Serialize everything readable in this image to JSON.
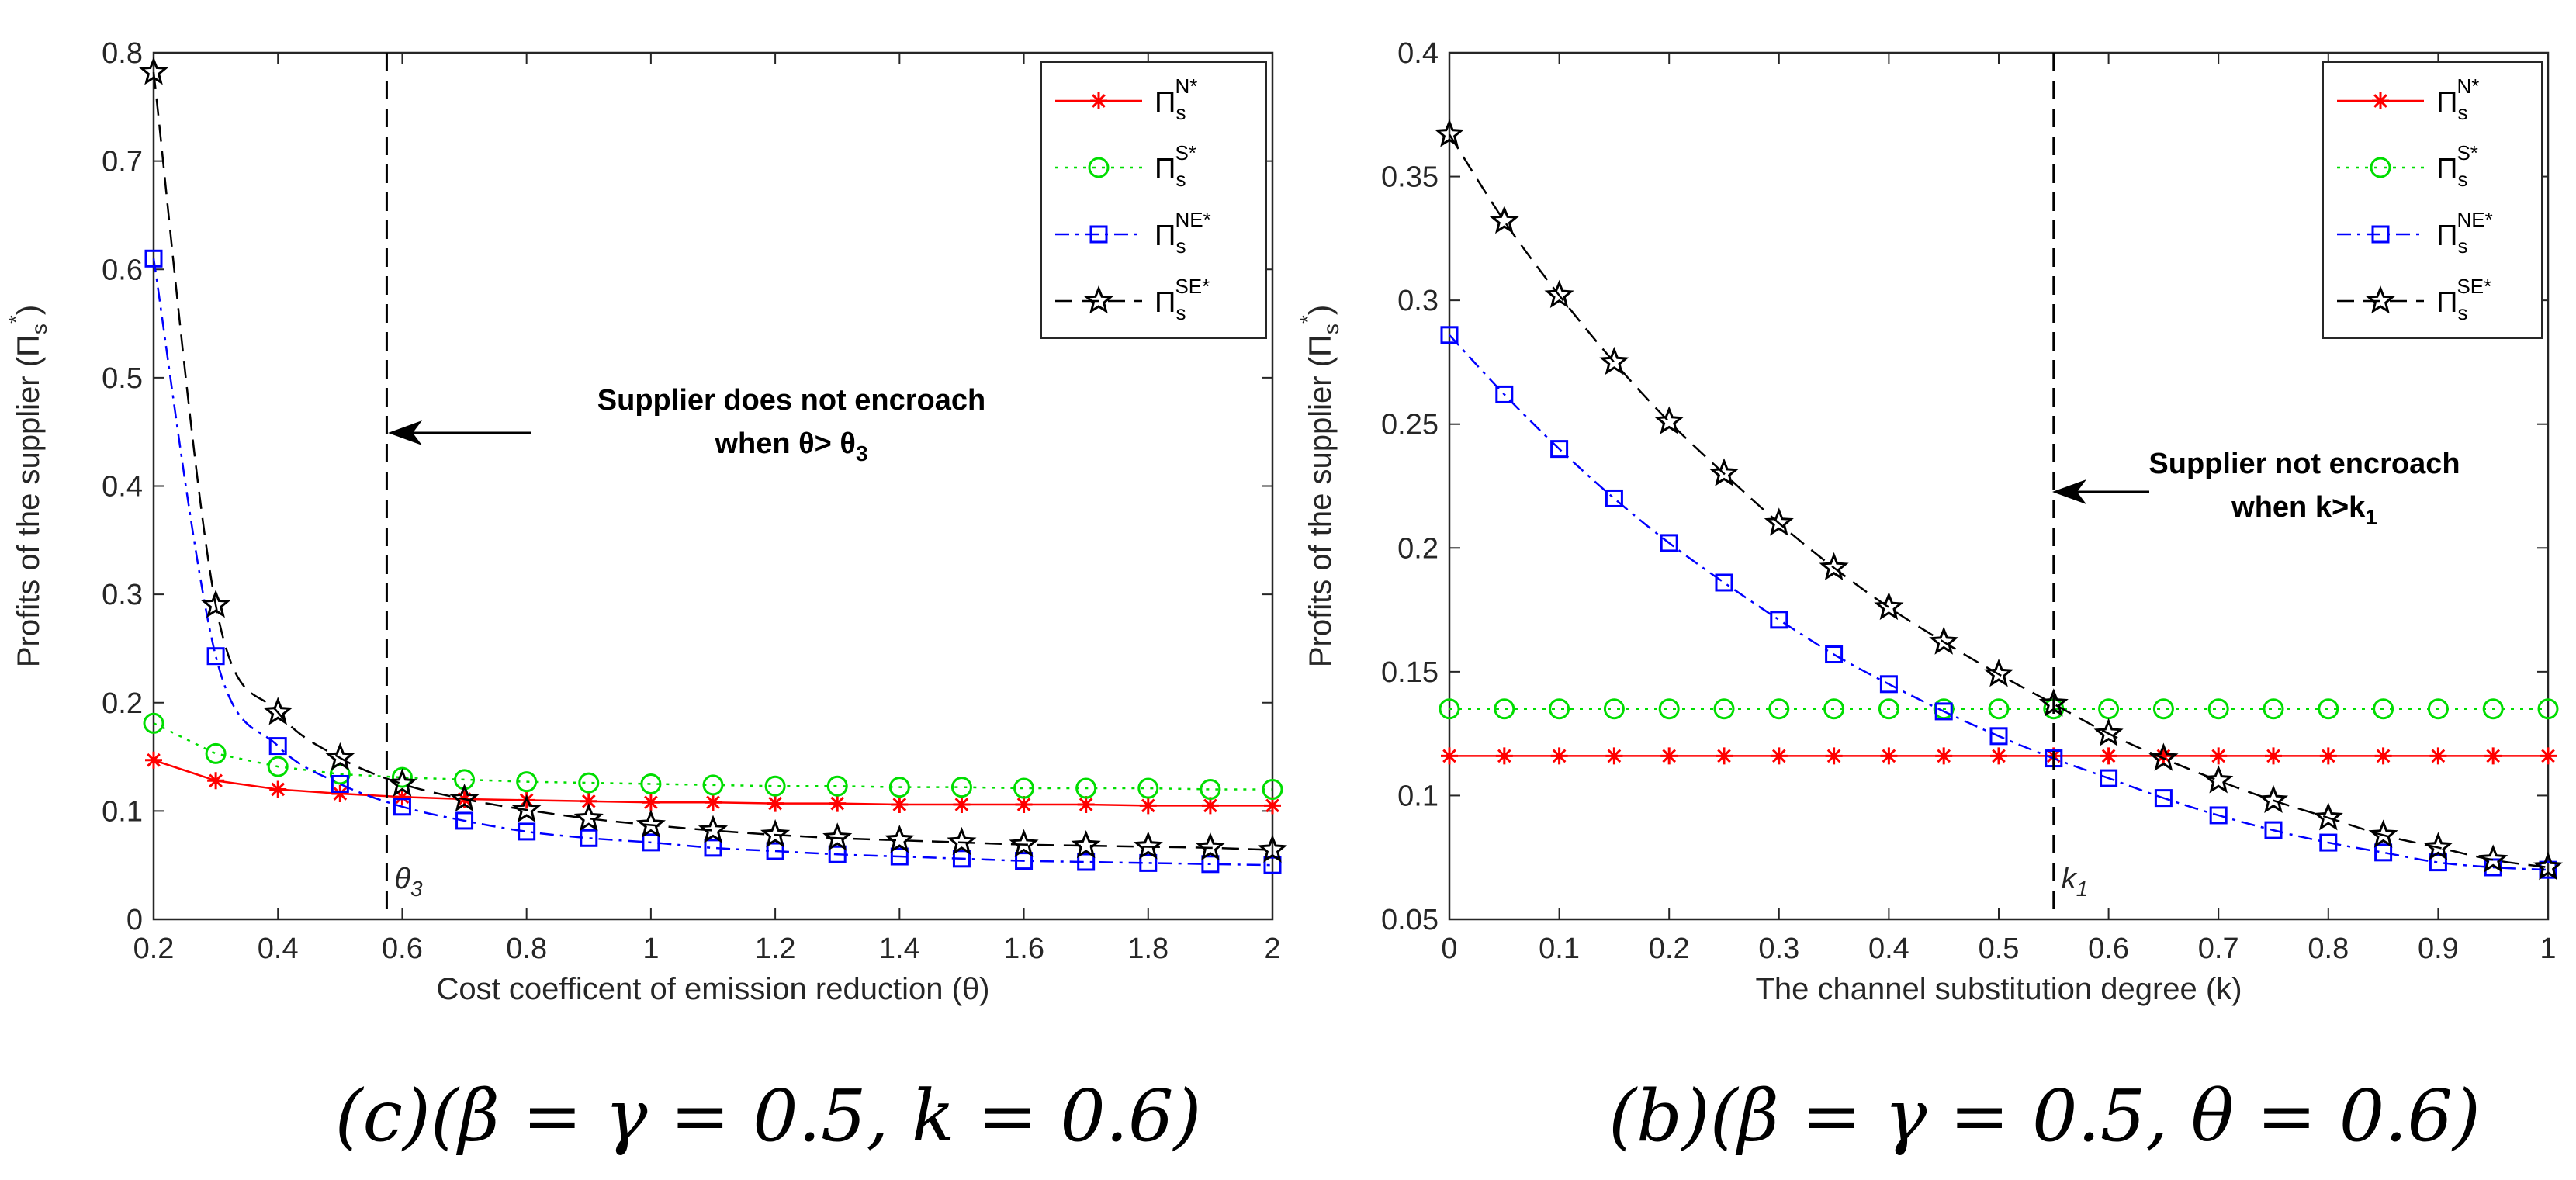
{
  "chart_data": [
    {
      "type": "line",
      "xlabel": "Cost coefficent of emission reduction  (θ)",
      "ylabel_prefix": "Profits of the supplier (",
      "ylabel_symbol": "Π",
      "ylabel_sub": "s",
      "ylabel_sup": "*",
      "ylabel_suffix": ")",
      "xlim": [
        0.2,
        2
      ],
      "ylim": [
        0,
        0.8
      ],
      "xticks": [
        0.2,
        0.4,
        0.6,
        0.8,
        1,
        1.2,
        1.4,
        1.6,
        1.8,
        2
      ],
      "xtick_labels": [
        "0.2",
        "0.4",
        "0.6",
        "0.8",
        "1",
        "1.2",
        "1.4",
        "1.6",
        "1.8",
        "2"
      ],
      "yticks": [
        0,
        0.1,
        0.2,
        0.3,
        0.4,
        0.5,
        0.6,
        0.7,
        0.8
      ],
      "ytick_labels": [
        "0",
        "0.1",
        "0.2",
        "0.3",
        "0.4",
        "0.5",
        "0.6",
        "0.7",
        "0.8"
      ],
      "x": [
        0.2,
        0.3,
        0.4,
        0.5,
        0.6,
        0.7,
        0.8,
        0.9,
        1.0,
        1.1,
        1.2,
        1.3,
        1.4,
        1.5,
        1.6,
        1.7,
        1.8,
        1.9,
        2.0
      ],
      "series": [
        {
          "name": "N*",
          "color": "#ff0000",
          "dash": "solid",
          "marker": "asterisk",
          "values": [
            0.147,
            0.128,
            0.12,
            0.116,
            0.113,
            0.111,
            0.11,
            0.109,
            0.108,
            0.108,
            0.107,
            0.107,
            0.106,
            0.106,
            0.106,
            0.106,
            0.105,
            0.105,
            0.105
          ]
        },
        {
          "name": "S*",
          "color": "#00dd00",
          "dash": "dotted",
          "marker": "circle",
          "values": [
            0.181,
            0.153,
            0.141,
            0.134,
            0.131,
            0.129,
            0.127,
            0.126,
            0.125,
            0.124,
            0.123,
            0.123,
            0.122,
            0.122,
            0.121,
            0.121,
            0.121,
            0.12,
            0.12
          ]
        },
        {
          "name": "NE*",
          "color": "#0000ff",
          "dash": "dashdot",
          "marker": "square",
          "values": [
            0.61,
            0.243,
            0.16,
            0.125,
            0.104,
            0.091,
            0.081,
            0.075,
            0.071,
            0.066,
            0.063,
            0.06,
            0.058,
            0.056,
            0.054,
            0.053,
            0.052,
            0.051,
            0.05
          ]
        },
        {
          "name": "SE*",
          "color": "#000000",
          "dash": "dashed",
          "marker": "star",
          "values": [
            0.782,
            0.29,
            0.191,
            0.149,
            0.125,
            0.111,
            0.101,
            0.093,
            0.087,
            0.082,
            0.078,
            0.075,
            0.073,
            0.071,
            0.069,
            0.068,
            0.067,
            0.066,
            0.064
          ]
        }
      ],
      "threshold_x": 0.575,
      "threshold_label": "θ",
      "threshold_sub": "3",
      "annotation_line1": "Supplier does not encroach",
      "annotation_line2_prefix": "when θ> θ",
      "annotation_line2_sub": "3",
      "caption": "(c)(β = γ = 0.5,  k = 0.6)"
    },
    {
      "type": "line",
      "xlabel": "The channel substitution degree (k)",
      "ylabel_prefix": "Profits of the supplier (",
      "ylabel_symbol": "Π",
      "ylabel_sub": "s",
      "ylabel_sup": "*",
      "ylabel_suffix": ")",
      "xlim": [
        0,
        1
      ],
      "ylim": [
        0.05,
        0.4
      ],
      "xticks": [
        0,
        0.1,
        0.2,
        0.3,
        0.4,
        0.5,
        0.6,
        0.7,
        0.8,
        0.9,
        1
      ],
      "xtick_labels": [
        "0",
        "0.1",
        "0.2",
        "0.3",
        "0.4",
        "0.5",
        "0.6",
        "0.7",
        "0.8",
        "0.9",
        "1"
      ],
      "yticks": [
        0.05,
        0.1,
        0.15,
        0.2,
        0.25,
        0.3,
        0.35,
        0.4
      ],
      "ytick_labels": [
        "0.05",
        "0.1",
        "0.15",
        "0.2",
        "0.25",
        "0.3",
        "0.35",
        "0.4"
      ],
      "x": [
        0,
        0.05,
        0.1,
        0.15,
        0.2,
        0.25,
        0.3,
        0.35,
        0.4,
        0.45,
        0.5,
        0.55,
        0.6,
        0.65,
        0.7,
        0.75,
        0.8,
        0.85,
        0.9,
        0.95,
        1.0
      ],
      "series": [
        {
          "name": "N*",
          "color": "#ff0000",
          "dash": "solid",
          "marker": "asterisk",
          "values": [
            0.116,
            0.116,
            0.116,
            0.116,
            0.116,
            0.116,
            0.116,
            0.116,
            0.116,
            0.116,
            0.116,
            0.116,
            0.116,
            0.116,
            0.116,
            0.116,
            0.116,
            0.116,
            0.116,
            0.116,
            0.116
          ]
        },
        {
          "name": "S*",
          "color": "#00dd00",
          "dash": "dotted",
          "marker": "circle",
          "values": [
            0.135,
            0.135,
            0.135,
            0.135,
            0.135,
            0.135,
            0.135,
            0.135,
            0.135,
            0.135,
            0.135,
            0.135,
            0.135,
            0.135,
            0.135,
            0.135,
            0.135,
            0.135,
            0.135,
            0.135,
            0.135
          ]
        },
        {
          "name": "NE*",
          "color": "#0000ff",
          "dash": "dashdot",
          "marker": "square",
          "values": [
            0.286,
            0.262,
            0.24,
            0.22,
            0.202,
            0.186,
            0.171,
            0.157,
            0.145,
            0.134,
            0.124,
            0.115,
            0.107,
            0.099,
            0.092,
            0.086,
            0.081,
            0.077,
            0.073,
            0.071,
            0.07
          ]
        },
        {
          "name": "SE*",
          "color": "#000000",
          "dash": "dashed",
          "marker": "star",
          "values": [
            0.367,
            0.332,
            0.302,
            0.275,
            0.251,
            0.23,
            0.21,
            0.192,
            0.176,
            0.162,
            0.149,
            0.137,
            0.125,
            0.115,
            0.106,
            0.098,
            0.091,
            0.084,
            0.079,
            0.074,
            0.071
          ]
        }
      ],
      "threshold_x": 0.55,
      "threshold_label": "k",
      "threshold_sub": "1",
      "annotation_line1": "Supplier not encroach",
      "annotation_line2_prefix": "when k>k",
      "annotation_line2_sub": "1",
      "caption": "(b)(β = γ = 0.5,  θ = 0.6)"
    }
  ]
}
